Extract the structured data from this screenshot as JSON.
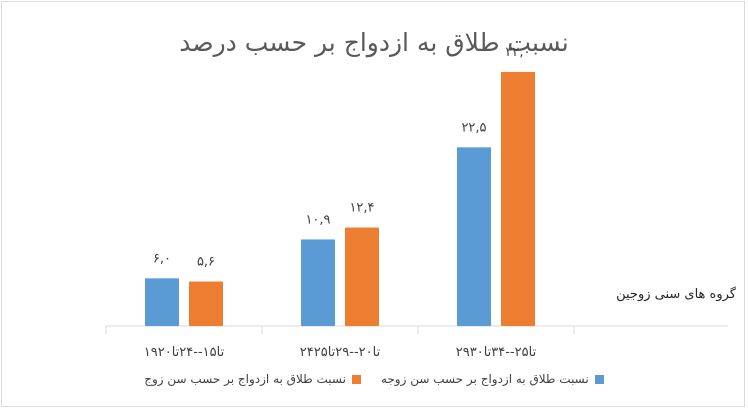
{
  "chart_data": {
    "type": "bar",
    "title": "نسبت طلاق به ازدواج بر حسب درصد",
    "xlabel": "گروه های سنی زوجین",
    "ylabel": "",
    "ylim": [
      0,
      33
    ],
    "grid": false,
    "legend_position": "bottom",
    "categories": [
      "۱۹تا۱۵--۲۴تا۲۰",
      "۲۴تا۲۰--۲۹تا۲۵",
      "۲۹تا۲۵--۳۴تا۳۰"
    ],
    "series": [
      {
        "name": "نسبت طلاق به ازدواج بر حسب سن زوجه",
        "color": "#5b9bd5",
        "values": [
          6.0,
          10.9,
          22.5
        ],
        "labels": [
          "۶,۰",
          "۱۰,۹",
          "۲۲,۵"
        ]
      },
      {
        "name": "نسبت طلاق به ازدواج بر حسب سن زوج",
        "color": "#ed7d31",
        "values": [
          5.6,
          12.4,
          32.0
        ],
        "labels": [
          "۵,۶",
          "۱۲,۴",
          "۳۲,۰"
        ]
      }
    ]
  }
}
